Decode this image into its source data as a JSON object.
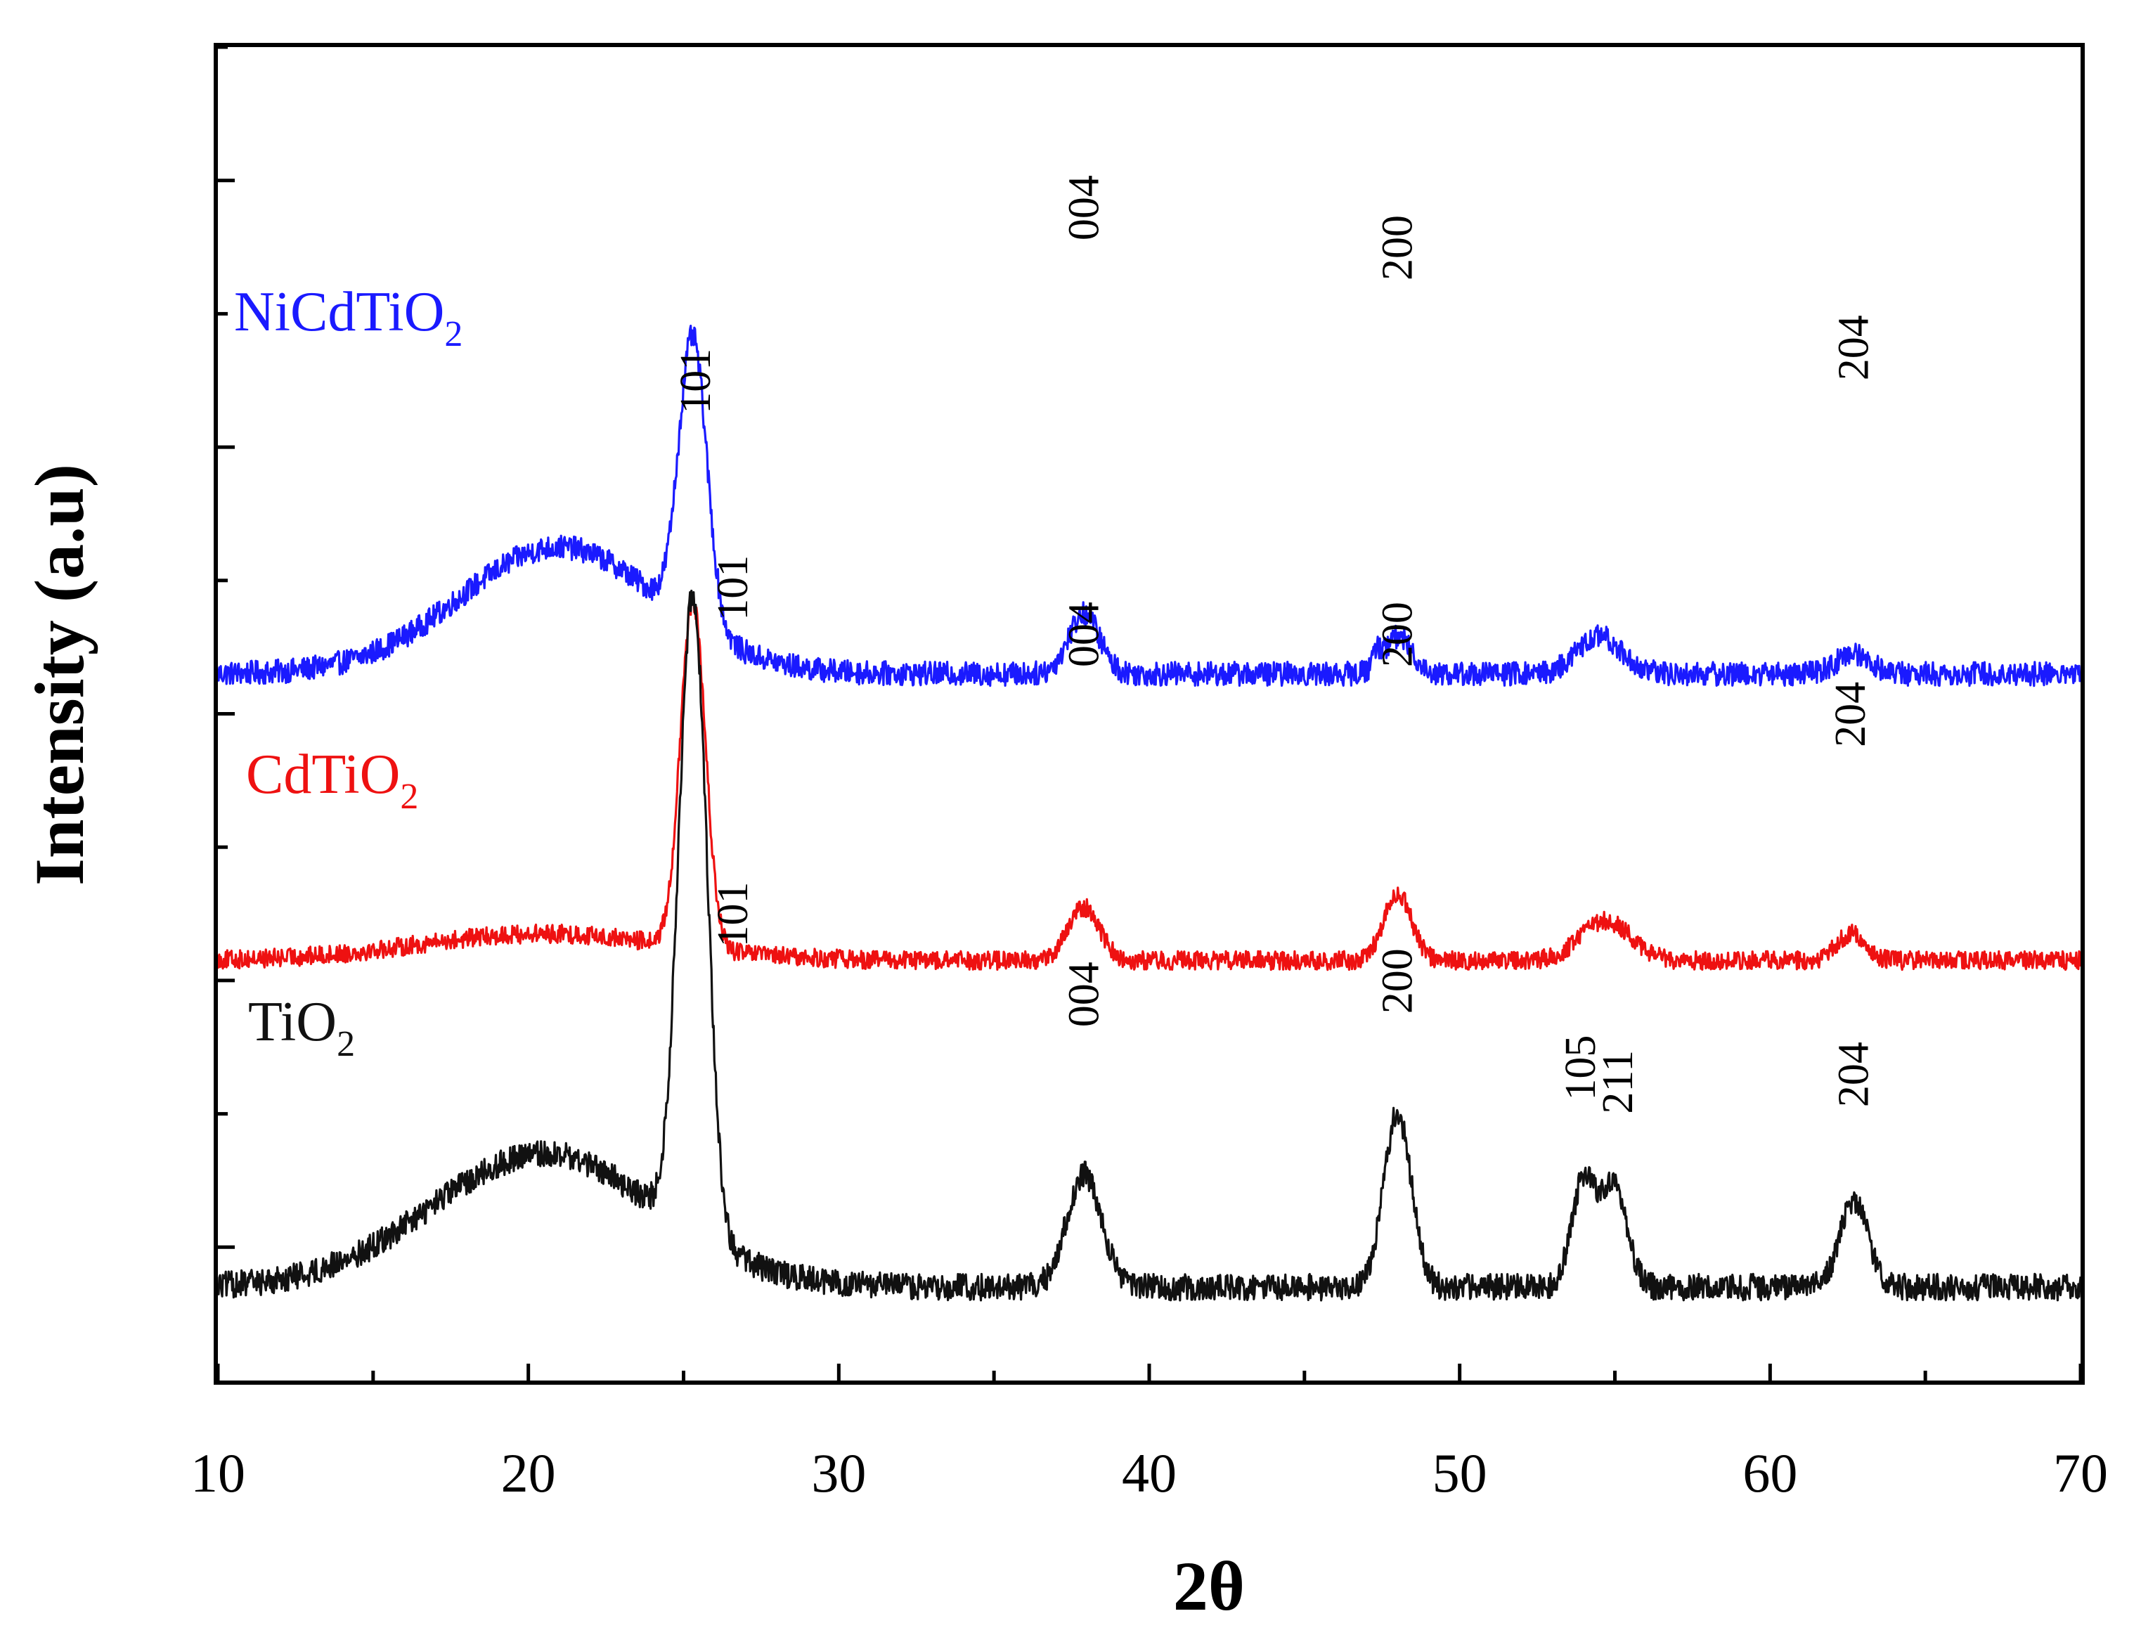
{
  "chart_data": {
    "type": "line",
    "title": "",
    "xlabel": "2θ",
    "ylabel": "Intensity (a.u)",
    "xlim": [
      10,
      70
    ],
    "ylim": [
      0,
      10
    ],
    "x_ticks": [
      10,
      20,
      30,
      40,
      50,
      60,
      70
    ],
    "x_tick_labels": [
      "10",
      "20",
      "30",
      "40",
      "50",
      "60",
      "70"
    ],
    "y_tick_labels_visible": false,
    "grid": false,
    "series": [
      {
        "name": "NiCdTiO2",
        "label": "NiCdTiO",
        "label_subscript": "2",
        "color": "#1a1aff",
        "baseline": 5.3,
        "peaks": [
          {
            "x": 21.0,
            "height": 0.95,
            "width": 3.2
          },
          {
            "x": 25.3,
            "height": 2.15,
            "width": 0.45
          },
          {
            "x": 37.9,
            "height": 0.45,
            "width": 0.5
          },
          {
            "x": 48.0,
            "height": 0.28,
            "width": 0.45
          },
          {
            "x": 47.3,
            "height": 0.12,
            "width": 0.12
          },
          {
            "x": 54.5,
            "height": 0.28,
            "width": 0.7
          },
          {
            "x": 62.7,
            "height": 0.15,
            "width": 0.55
          }
        ],
        "noise": 0.09,
        "annotations": [
          {
            "x": 25.4,
            "text": "101"
          },
          {
            "x": 37.9,
            "text": "004"
          },
          {
            "x": 48.0,
            "text": "200"
          },
          {
            "x": 62.7,
            "text": "204"
          }
        ]
      },
      {
        "name": "CdTiO2",
        "label": "CdTiO",
        "label_subscript": "2",
        "color": "#ee1111",
        "baseline": 3.15,
        "peaks": [
          {
            "x": 20.5,
            "height": 0.2,
            "width": 4.0
          },
          {
            "x": 25.3,
            "height": 2.6,
            "width": 0.4
          },
          {
            "x": 37.9,
            "height": 0.4,
            "width": 0.5
          },
          {
            "x": 48.0,
            "height": 0.5,
            "width": 0.45
          },
          {
            "x": 54.7,
            "height": 0.3,
            "width": 0.8
          },
          {
            "x": 62.6,
            "height": 0.2,
            "width": 0.45
          }
        ],
        "noise": 0.07,
        "annotations": [
          {
            "x": 26.6,
            "text": "101"
          },
          {
            "x": 37.9,
            "text": "004"
          },
          {
            "x": 48.0,
            "text": "200"
          },
          {
            "x": 62.6,
            "text": "204"
          }
        ]
      },
      {
        "name": "TiO2",
        "label": "TiO",
        "label_subscript": "2",
        "color": "#111111",
        "baseline": 0.7,
        "peaks": [
          {
            "x": 20.5,
            "height": 1.0,
            "width": 3.6
          },
          {
            "x": 25.3,
            "height": 4.8,
            "width": 0.45
          },
          {
            "x": 37.9,
            "height": 0.85,
            "width": 0.55
          },
          {
            "x": 48.0,
            "height": 1.3,
            "width": 0.45
          },
          {
            "x": 54.0,
            "height": 0.8,
            "width": 0.4
          },
          {
            "x": 55.0,
            "height": 0.75,
            "width": 0.4
          },
          {
            "x": 62.7,
            "height": 0.65,
            "width": 0.45
          }
        ],
        "noise": 0.1,
        "annotations": [
          {
            "x": 26.6,
            "text": "101"
          },
          {
            "x": 37.9,
            "text": "004"
          },
          {
            "x": 48.0,
            "text": "200"
          },
          {
            "x": 53.9,
            "text": "105"
          },
          {
            "x": 55.1,
            "text": "211"
          },
          {
            "x": 62.7,
            "text": "204"
          }
        ]
      }
    ]
  }
}
